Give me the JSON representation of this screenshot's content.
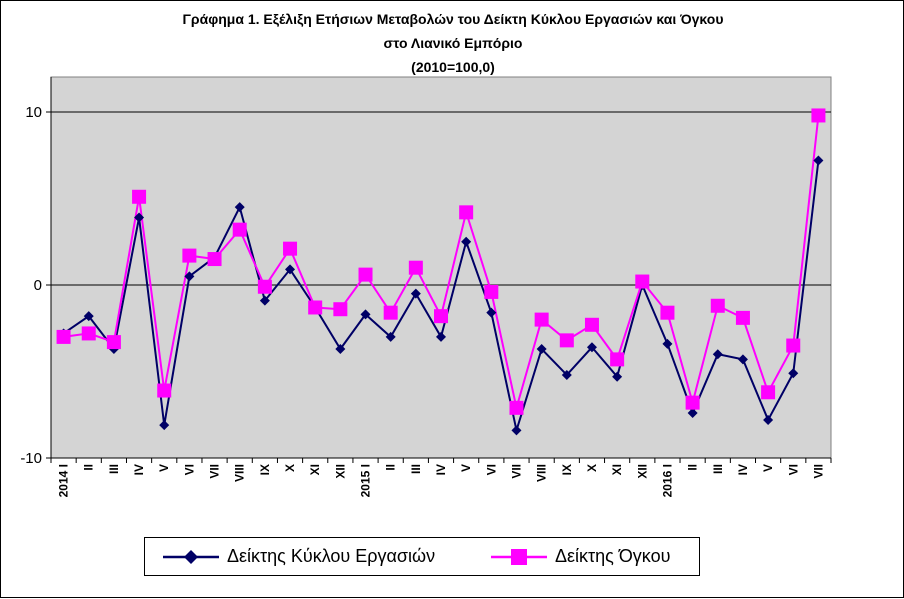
{
  "title": {
    "line1": "Γράφημα 1. Εξέλιξη Ετήσιων Μεταβολών του Δείκτη Κύκλου Εργασιών και Όγκου",
    "line2": "στο Λιανικό Εμπόριο",
    "line3": "(2010=100,0)"
  },
  "chart_data": {
    "type": "line",
    "title": "Γράφημα 1. Εξέλιξη Ετήσιων Μεταβολών του Δείκτη Κύκλου Εργασιών και Όγκου στο Λιανικό Εμπόριο (2010=100,0)",
    "categories": [
      "2014 I",
      "II",
      "III",
      "IV",
      "V",
      "VI",
      "VII",
      "VIII",
      "IX",
      "X",
      "XI",
      "XII",
      "2015 I",
      "II",
      "III",
      "IV",
      "V",
      "VI",
      "VII",
      "VIII",
      "IX",
      "X",
      "XI",
      "XII",
      "2016 I",
      "II",
      "III",
      "IV",
      "V",
      "VI",
      "VII"
    ],
    "y_ticks": [
      "10",
      "0",
      "-10"
    ],
    "ylim": [
      -10,
      10
    ],
    "grid": "horizontal at 10 and 0",
    "legend": "bottom-center",
    "series": [
      {
        "name": "Δείκτης Κύκλου Εργασιών",
        "color": "#000066",
        "marker": "diamond",
        "values": [
          -2.8,
          -1.8,
          -3.7,
          3.9,
          -8.1,
          0.5,
          1.6,
          4.5,
          -0.9,
          0.9,
          -1.3,
          -3.7,
          -1.7,
          -3.0,
          -0.5,
          -3.0,
          2.5,
          -1.6,
          -8.4,
          -3.7,
          -5.2,
          -3.6,
          -5.3,
          0.0,
          -3.4,
          -7.4,
          -4.0,
          -4.3,
          -7.8,
          -5.1,
          7.2
        ]
      },
      {
        "name": "Δείκτης Όγκου",
        "color": "#ff00ff",
        "marker": "square",
        "values": [
          -3.0,
          -2.8,
          -3.3,
          5.1,
          -6.1,
          1.7,
          1.5,
          3.2,
          -0.1,
          2.1,
          -1.3,
          -1.4,
          0.6,
          -1.6,
          1.0,
          -1.8,
          4.2,
          -0.4,
          -7.1,
          -2.0,
          -3.2,
          -2.3,
          -4.3,
          0.2,
          -1.6,
          -6.8,
          -1.2,
          -1.9,
          -6.2,
          -3.5,
          9.8
        ]
      }
    ]
  }
}
